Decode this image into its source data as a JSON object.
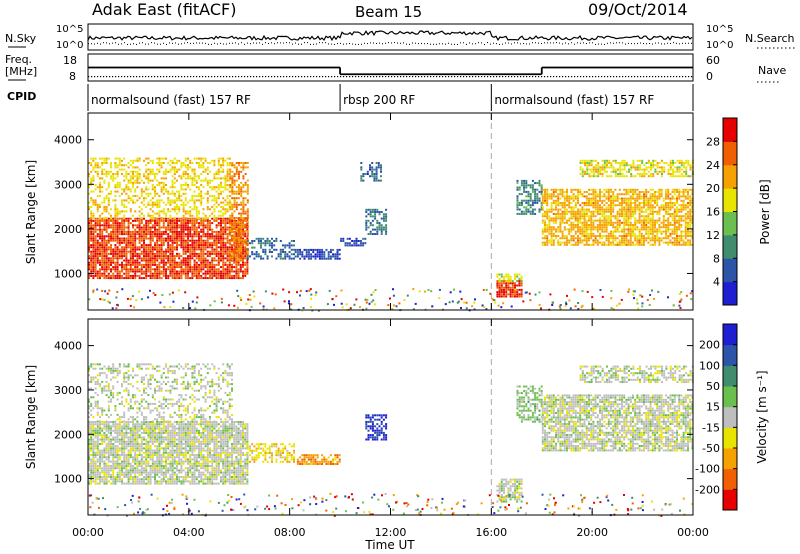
{
  "header": {
    "station": "Adak East (fitACF)",
    "beam": "Beam 15",
    "date": "09/Oct/2014"
  },
  "top_panels": {
    "nsky_label": "N.Sky",
    "nsearch_label": "N.Search",
    "n_ticks": [
      "10^5",
      "10^0"
    ],
    "freq_label_1": "Freq.",
    "freq_label_2": "[MHz]",
    "freq_ticks": [
      "18",
      "8"
    ],
    "nave_label": "Nave",
    "nave_ticks": [
      "60",
      "0"
    ],
    "cpid_label": "CPID",
    "cpid_segments": [
      {
        "label": "normalsound (fast) 157 RF",
        "start_hour": 0,
        "end_hour": 10
      },
      {
        "label": "rbsp 200 RF",
        "start_hour": 10,
        "end_hour": 16
      },
      {
        "label": "normalsound (fast) 157 RF",
        "start_hour": 16,
        "end_hour": 24
      }
    ],
    "freq_mhz_steps": [
      {
        "start_hour": 0,
        "end_hour": 10,
        "value": 13
      },
      {
        "start_hour": 10,
        "end_hour": 18,
        "value": 10.5
      },
      {
        "start_hour": 18,
        "end_hour": 24,
        "value": 13
      }
    ]
  },
  "axes": {
    "ylabel": "Slant Range [km]",
    "xlabel": "Time UT",
    "x_ticks": [
      "00:00",
      "04:00",
      "08:00",
      "12:00",
      "16:00",
      "20:00",
      "00:00"
    ],
    "x_tick_hours": [
      0,
      4,
      8,
      12,
      16,
      20,
      24
    ],
    "y_ticks": [
      "1000",
      "2000",
      "3000",
      "4000"
    ],
    "y_tick_values": [
      1000,
      2000,
      3000,
      4000
    ],
    "xlim": [
      0,
      24
    ],
    "ylim": [
      180,
      4600
    ]
  },
  "chart_data": [
    {
      "type": "heatmap",
      "name": "Power",
      "colorbar_label": "Power [dB]",
      "colorbar_ticks": [
        "28",
        "24",
        "20",
        "16",
        "12",
        "8",
        "4"
      ],
      "colorbar_range": [
        0,
        30
      ],
      "colors": [
        "#1e1ed2",
        "#2c54a8",
        "#3f8c6e",
        "#6bbf4e",
        "#e8e400",
        "#f5a100",
        "#f06000",
        "#e60000"
      ],
      "regions": [
        {
          "t": [
            0,
            6.3
          ],
          "r": [
            900,
            2250
          ],
          "level": 26,
          "density": 0.85
        },
        {
          "t": [
            0,
            5.7
          ],
          "r": [
            2250,
            3600
          ],
          "level": 18,
          "density": 0.45
        },
        {
          "t": [
            5.6,
            6.3
          ],
          "r": [
            1300,
            3500
          ],
          "level": 22,
          "density": 0.6
        },
        {
          "t": [
            6.3,
            8.2
          ],
          "r": [
            1350,
            1800
          ],
          "level": 7,
          "density": 0.5
        },
        {
          "t": [
            8.2,
            10
          ],
          "r": [
            1350,
            1550
          ],
          "level": 5,
          "density": 0.7
        },
        {
          "t": [
            10,
            11
          ],
          "r": [
            1650,
            1800
          ],
          "level": 5,
          "density": 0.7
        },
        {
          "t": [
            11,
            11.8
          ],
          "r": [
            1900,
            2450
          ],
          "level": 8,
          "density": 0.55
        },
        {
          "t": [
            10.8,
            11.6
          ],
          "r": [
            3100,
            3500
          ],
          "level": 6,
          "density": 0.5
        },
        {
          "t": [
            16.2,
            17.2
          ],
          "r": [
            500,
            850
          ],
          "level": 27,
          "density": 0.9
        },
        {
          "t": [
            16.2,
            17.2
          ],
          "r": [
            850,
            1000
          ],
          "level": 16,
          "density": 0.7
        },
        {
          "t": [
            17,
            18
          ],
          "r": [
            2350,
            3100
          ],
          "level": 9,
          "density": 0.6
        },
        {
          "t": [
            18,
            24
          ],
          "r": [
            1650,
            2900
          ],
          "level": 20,
          "density": 0.75
        },
        {
          "t": [
            19.5,
            24
          ],
          "r": [
            3200,
            3550
          ],
          "level": 17,
          "density": 0.6
        }
      ]
    },
    {
      "type": "heatmap",
      "name": "Velocity",
      "colorbar_label": "Velocity [m s⁻¹]",
      "colorbar_ticks": [
        "200",
        "100",
        "50",
        "15",
        "-15",
        "-50",
        "-100",
        "-200"
      ],
      "colorbar_range": [
        -250,
        250
      ],
      "colors": [
        "#e60000",
        "#f06000",
        "#f5a100",
        "#e8e400",
        "#bebebe",
        "#6bbf4e",
        "#3f8c6e",
        "#2c54a8",
        "#1e1ed2"
      ],
      "regions": [
        {
          "t": [
            0,
            6.3
          ],
          "r": [
            900,
            2300
          ],
          "level": 0,
          "density": 0.85
        },
        {
          "t": [
            0,
            5.7
          ],
          "r": [
            2300,
            3600
          ],
          "level": 0,
          "density": 0.35
        },
        {
          "t": [
            6.3,
            8.2
          ],
          "r": [
            1400,
            1800
          ],
          "level": -60,
          "density": 0.5
        },
        {
          "t": [
            8.2,
            10
          ],
          "r": [
            1350,
            1550
          ],
          "level": -120,
          "density": 0.75
        },
        {
          "t": [
            11,
            11.8
          ],
          "r": [
            1900,
            2450
          ],
          "level": 210,
          "density": 0.6
        },
        {
          "t": [
            16.2,
            17.2
          ],
          "r": [
            500,
            1000
          ],
          "level": 0,
          "density": 0.7
        },
        {
          "t": [
            17,
            18
          ],
          "r": [
            2300,
            3100
          ],
          "level": 40,
          "density": 0.6
        },
        {
          "t": [
            18,
            24
          ],
          "r": [
            1650,
            2900
          ],
          "level": 0,
          "density": 0.75
        },
        {
          "t": [
            19.5,
            24
          ],
          "r": [
            3200,
            3550
          ],
          "level": 0,
          "density": 0.6
        }
      ]
    }
  ]
}
